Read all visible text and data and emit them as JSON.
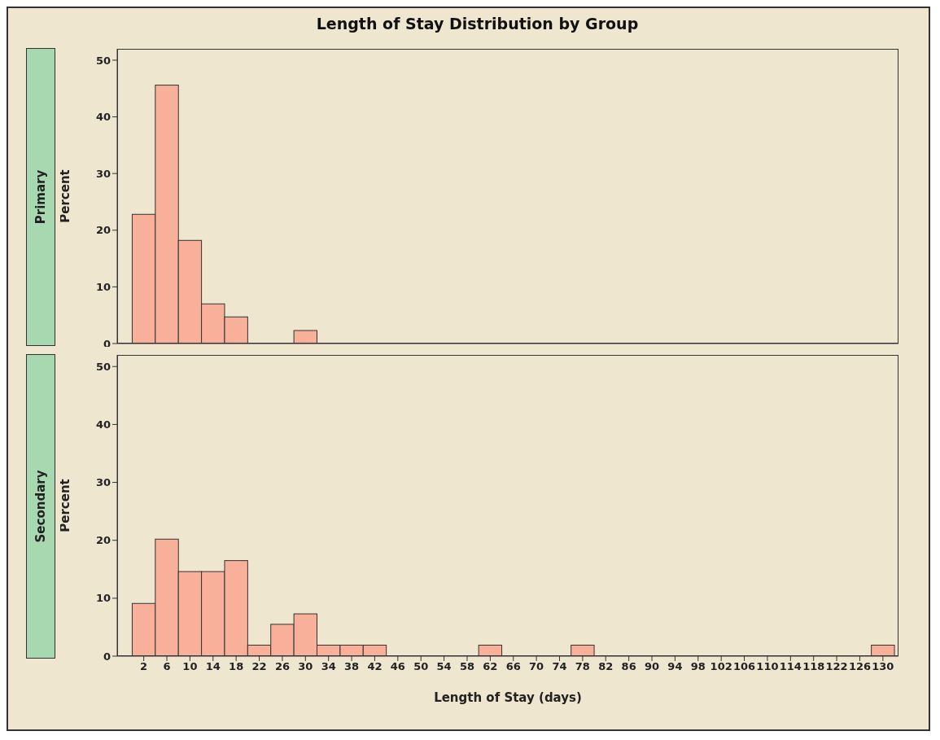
{
  "chart_data": [
    {
      "type": "histogram",
      "title": "Length of Stay Distribution by Group",
      "subtitle": "Primary",
      "ylabel": "Percent",
      "color": "#f9b09a",
      "bins": [
        0,
        4,
        8,
        12,
        16,
        20,
        24,
        28,
        32,
        36,
        40,
        44,
        48,
        52,
        56,
        60,
        64,
        68,
        72,
        76,
        80,
        84,
        88,
        92,
        96,
        100,
        104,
        108,
        112,
        116,
        120,
        124,
        128,
        132
      ],
      "values": [
        22.8,
        45.6,
        18.2,
        7,
        4.7,
        0,
        0,
        2.3,
        0,
        0,
        0,
        0,
        0,
        0,
        0,
        0,
        0,
        0,
        0,
        0,
        0,
        0,
        0,
        0,
        0,
        0,
        0,
        0,
        0,
        0,
        0,
        0,
        0
      ],
      "xlim": [
        -2.6,
        132.7
      ],
      "xticks": [
        2,
        6,
        10,
        14,
        18,
        22,
        26,
        30,
        34,
        38,
        42,
        46,
        50,
        54,
        58,
        62,
        66,
        70,
        74,
        78,
        82,
        86,
        90,
        94,
        98,
        102,
        106,
        110,
        114,
        118,
        122,
        126,
        130
      ],
      "ylim": [
        0,
        52
      ],
      "yticks": [
        0,
        10,
        20,
        30,
        40,
        50
      ],
      "tick_labels": "y"
    },
    {
      "type": "histogram",
      "subtitle": "Secondary",
      "ylabel": "Percent",
      "xlabel": "Length of Stay (days)",
      "color": "#f9b09a",
      "bins": [
        0,
        4,
        8,
        12,
        16,
        20,
        24,
        28,
        32,
        36,
        40,
        44,
        48,
        52,
        56,
        60,
        64,
        68,
        72,
        76,
        80,
        84,
        88,
        92,
        96,
        100,
        104,
        108,
        112,
        116,
        120,
        124,
        128,
        132
      ],
      "values": [
        9.1,
        20.2,
        14.6,
        14.6,
        16.5,
        1.9,
        5.5,
        7.3,
        1.9,
        1.9,
        1.9,
        0,
        0,
        0,
        0,
        1.9,
        0,
        0,
        0,
        1.9,
        0,
        0,
        0,
        0,
        0,
        0,
        0,
        0,
        0,
        0,
        0,
        0,
        1.9
      ],
      "xlim": [
        -2.6,
        132.7
      ],
      "xticks": [
        2,
        6,
        10,
        14,
        18,
        22,
        26,
        30,
        34,
        38,
        42,
        46,
        50,
        54,
        58,
        62,
        66,
        70,
        74,
        78,
        82,
        86,
        90,
        94,
        98,
        102,
        106,
        110,
        114,
        118,
        122,
        126,
        130
      ],
      "ylim": [
        0,
        52
      ],
      "yticks": [
        0,
        10,
        20,
        30,
        40,
        50
      ]
    }
  ]
}
